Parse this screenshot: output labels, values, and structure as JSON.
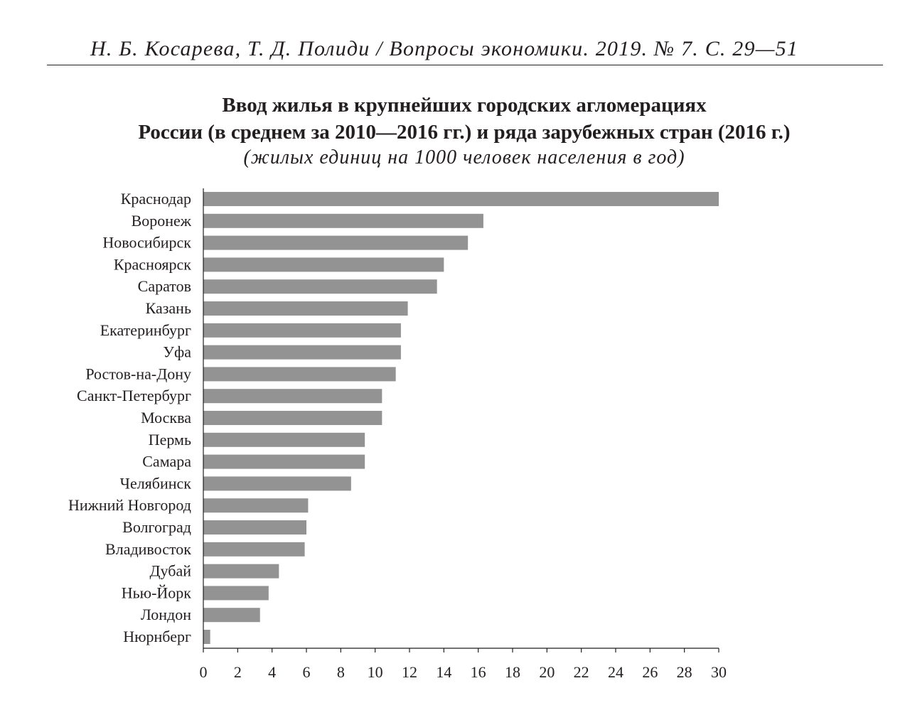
{
  "header": {
    "running_title": "Н. Б. Косарева, Т. Д. Полиди / Вопросы экономики. 2019. № 7. С. 29—51"
  },
  "chart_data": {
    "type": "bar",
    "orientation": "horizontal",
    "title_line1": "Ввод жилья в крупнейших городских агломерациях",
    "title_line2": "России (в среднем за 2010—2016 гг.) и ряда зарубежных стран (2016 г.)",
    "subtitle": "(жилых единиц на 1000 человек населения в год)",
    "categories": [
      "Краснодар",
      "Воронеж",
      "Новосибирск",
      "Красноярск",
      "Саратов",
      "Казань",
      "Екатеринбург",
      "Уфа",
      "Ростов-на-Дону",
      "Санкт-Петербург",
      "Москва",
      "Пермь",
      "Самара",
      "Челябинск",
      "Нижний Новгород",
      "Волгоград",
      "Владивосток",
      "Дубай",
      "Нью-Йорк",
      "Лондон",
      "Нюрнберг"
    ],
    "values": [
      30.0,
      16.3,
      15.4,
      14.0,
      13.6,
      11.9,
      11.5,
      11.5,
      11.2,
      10.4,
      10.4,
      9.4,
      9.4,
      8.6,
      6.1,
      6.0,
      5.9,
      4.4,
      3.8,
      3.3,
      0.4
    ],
    "xlim": [
      0,
      30
    ],
    "xticks": [
      "0",
      "2",
      "4",
      "6",
      "8",
      "10",
      "12",
      "14",
      "16",
      "18",
      "20",
      "22",
      "24",
      "26",
      "28",
      "30"
    ],
    "xlabel": "",
    "ylabel": "",
    "bar_color": "#939393",
    "axis_color": "#231f20",
    "grid": false,
    "legend": "none"
  }
}
